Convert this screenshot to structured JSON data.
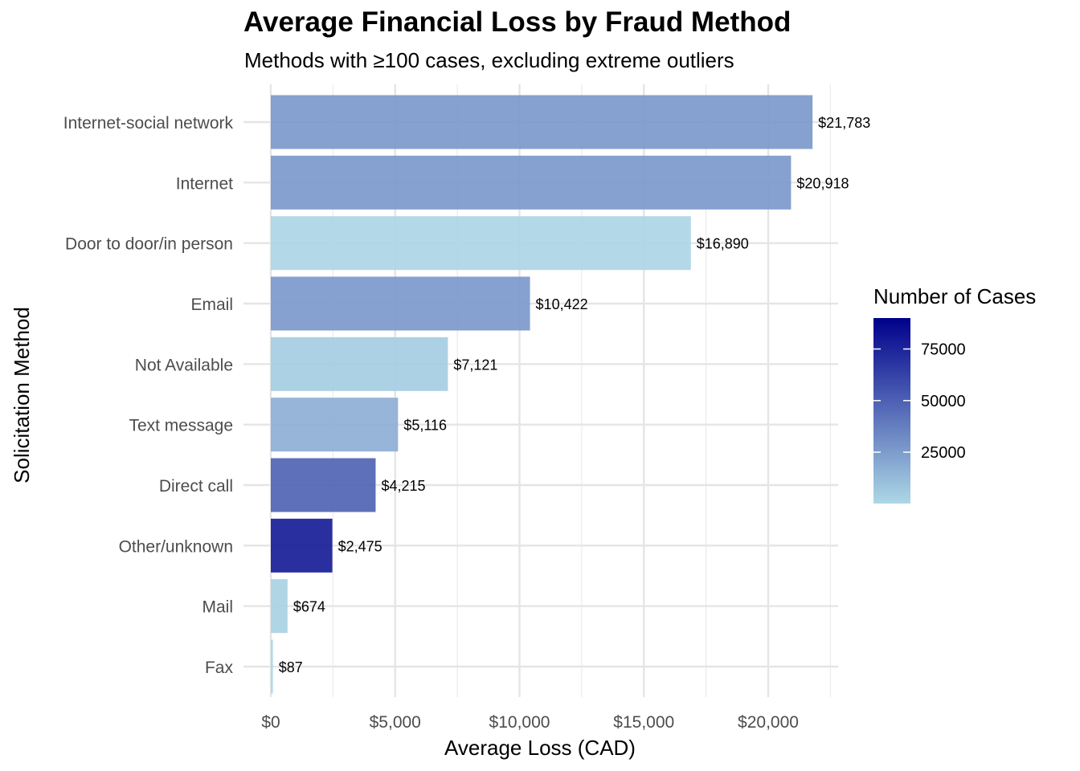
{
  "chart_data": {
    "type": "bar",
    "orientation": "horizontal",
    "title": "Average Financial Loss by Fraud Method",
    "subtitle": "Methods with ≥100 cases, excluding extreme outliers",
    "xlabel": "Average Loss (CAD)",
    "ylabel": "Solicitation Method",
    "xlim": [
      0,
      22800
    ],
    "x_ticks": [
      0,
      5000,
      10000,
      15000,
      20000
    ],
    "x_tick_labels": [
      "$0",
      "$5,000",
      "$10,000",
      "$15,000",
      "$20,000"
    ],
    "grid": true,
    "legend": {
      "title": "Number of Cases",
      "position": "right",
      "type": "colorbar",
      "ticks": [
        25000,
        50000,
        75000
      ],
      "tick_labels": [
        "25000",
        "50000",
        "75000"
      ],
      "range": [
        100,
        90000
      ],
      "low_color": "#ADD8E6",
      "high_color": "#00008B"
    },
    "categories": [
      "Internet-social network",
      "Internet",
      "Door to door/in person",
      "Email",
      "Not Available",
      "Text message",
      "Direct call",
      "Other/unknown",
      "Mail",
      "Fax"
    ],
    "values": [
      21783,
      20918,
      16890,
      10422,
      7121,
      5116,
      4215,
      2475,
      674,
      87
    ],
    "value_labels": [
      "$21,783",
      "$20,918",
      "$16,890",
      "$10,422",
      "$7,121",
      "$5,116",
      "$4,215",
      "$2,475",
      "$674",
      "$87"
    ],
    "case_counts": [
      27000,
      27000,
      1200,
      27000,
      5000,
      18000,
      50000,
      80000,
      3000,
      800
    ],
    "bar_opacity": 0.9
  }
}
